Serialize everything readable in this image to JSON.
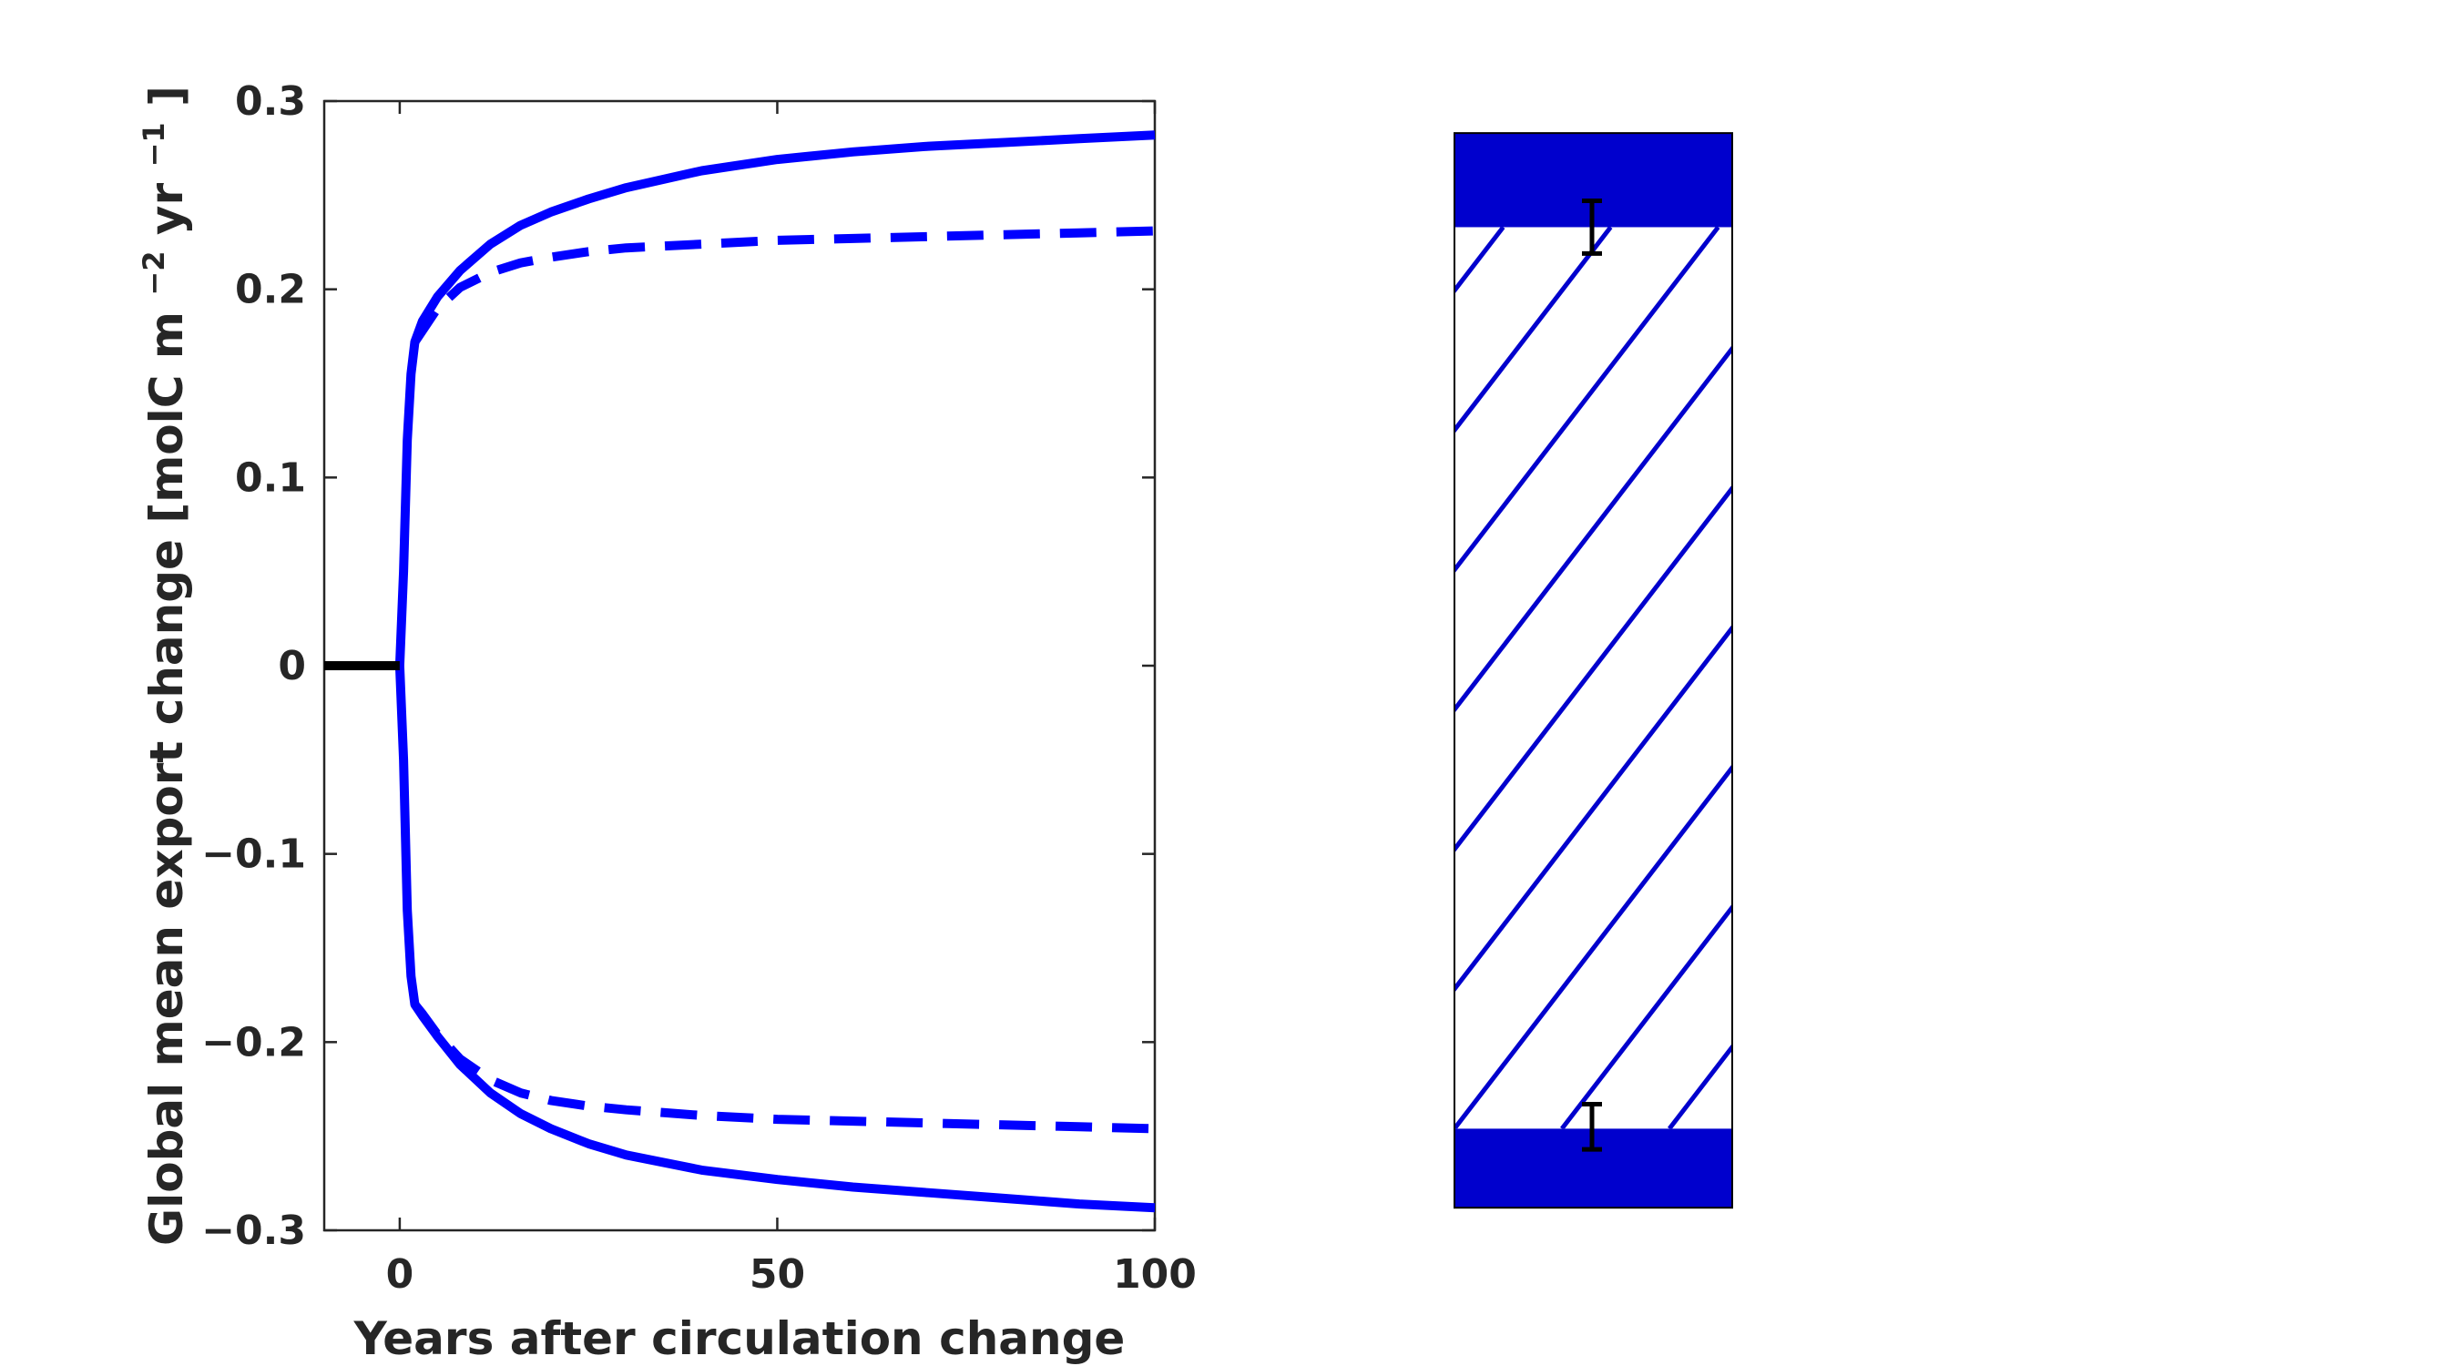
{
  "chart_data": [
    {
      "type": "line",
      "title": "",
      "xlabel": "Years after circulation change",
      "ylabel": {
        "main": "Global mean export change [molC m",
        "exp1": "−2",
        "mid": " yr",
        "exp2": "−1",
        "end": "]"
      },
      "xlim": [
        -10,
        100
      ],
      "ylim": [
        -0.3,
        0.3
      ],
      "x_ticks": [
        0,
        50,
        100
      ],
      "x_tick_labels": [
        "0",
        "50",
        "100"
      ],
      "y_ticks": [
        -0.3,
        -0.2,
        -0.1,
        0,
        0.1,
        0.2,
        0.3
      ],
      "y_tick_labels": [
        "−0.3",
        "−0.2",
        "−0.1",
        "0",
        "0.1",
        "0.2",
        "0.3"
      ],
      "grid": false,
      "colors": {
        "series": "#0000ff",
        "baseline": "#000000",
        "axis": "#262626"
      },
      "series": [
        {
          "style": "solid",
          "color": "#0000ff",
          "x": [
            0,
            0.5,
            1,
            1.5,
            2,
            3,
            5,
            8,
            12,
            16,
            20,
            25,
            30,
            40,
            50,
            60,
            70,
            80,
            90,
            100
          ],
          "y": [
            0,
            0.05,
            0.12,
            0.155,
            0.172,
            0.183,
            0.196,
            0.21,
            0.224,
            0.234,
            0.241,
            0.248,
            0.254,
            0.263,
            0.269,
            0.273,
            0.276,
            0.278,
            0.28,
            0.282
          ]
        },
        {
          "style": "dashed",
          "color": "#0000ff",
          "x": [
            2,
            3,
            5,
            8,
            12,
            16,
            20,
            25,
            30,
            40,
            50,
            60,
            70,
            80,
            90,
            100
          ],
          "y": [
            0.172,
            0.178,
            0.19,
            0.201,
            0.209,
            0.214,
            0.217,
            0.22,
            0.222,
            0.224,
            0.226,
            0.227,
            0.228,
            0.229,
            0.23,
            0.231
          ]
        },
        {
          "style": "solid",
          "color": "#0000ff",
          "x": [
            0,
            0.5,
            1,
            1.5,
            2,
            3,
            5,
            8,
            12,
            16,
            20,
            25,
            30,
            40,
            50,
            60,
            70,
            80,
            90,
            100
          ],
          "y": [
            0,
            -0.05,
            -0.13,
            -0.165,
            -0.18,
            -0.186,
            -0.197,
            -0.212,
            -0.227,
            -0.238,
            -0.246,
            -0.254,
            -0.26,
            -0.268,
            -0.273,
            -0.277,
            -0.28,
            -0.283,
            -0.286,
            -0.288
          ]
        },
        {
          "style": "dashed",
          "color": "#0000ff",
          "x": [
            2,
            3,
            5,
            8,
            12,
            16,
            20,
            25,
            30,
            40,
            50,
            60,
            70,
            80,
            90,
            100
          ],
          "y": [
            -0.18,
            -0.185,
            -0.196,
            -0.209,
            -0.22,
            -0.227,
            -0.231,
            -0.234,
            -0.236,
            -0.239,
            -0.241,
            -0.242,
            -0.243,
            -0.244,
            -0.245,
            -0.246
          ]
        },
        {
          "style": "solid",
          "color": "#000000",
          "x": [
            -10,
            0
          ],
          "y": [
            0,
            0
          ]
        }
      ]
    },
    {
      "type": "bar",
      "title": "",
      "ylim": [
        -0.3,
        0.3
      ],
      "solid_top": [
        0.233,
        0.283
      ],
      "hatched_band": [
        -0.246,
        0.233
      ],
      "solid_bottom": [
        -0.288,
        -0.246
      ],
      "error_bars": [
        {
          "center": 0.233,
          "low": 0.219,
          "high": 0.247
        },
        {
          "center": -0.246,
          "low": -0.257,
          "high": -0.233
        }
      ],
      "colors": {
        "fill": "#0000cd",
        "hatch": "#0000cd",
        "error_bar": "#000000",
        "edge": "#000000"
      }
    }
  ]
}
